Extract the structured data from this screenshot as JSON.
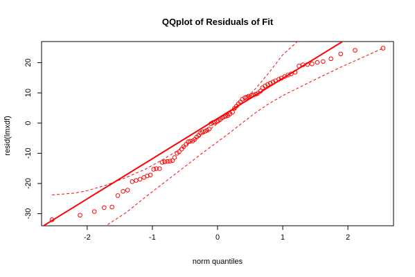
{
  "chart_data": {
    "type": "scatter",
    "title": "QQplot of Residuals of Fit",
    "xlabel": "norm quantiles",
    "ylabel": "resid(lmxdf)",
    "xlim": [
      -2.7,
      2.7
    ],
    "ylim": [
      -34,
      27
    ],
    "x_ticks": [
      -2,
      -1,
      0,
      1,
      2
    ],
    "y_ticks": [
      -30,
      -20,
      -10,
      0,
      10,
      20
    ],
    "grid": false,
    "legend": "none",
    "colors": {
      "points": "#ff0000",
      "line": "#ff0000",
      "axes": "#000000"
    },
    "points": [
      [
        -2.54,
        -32.0
      ],
      [
        -2.11,
        -30.5
      ],
      [
        -1.89,
        -29.3
      ],
      [
        -1.74,
        -28.0
      ],
      [
        -1.62,
        -27.8
      ],
      [
        -1.53,
        -24.0
      ],
      [
        -1.45,
        -22.6
      ],
      [
        -1.38,
        -22.2
      ],
      [
        -1.31,
        -19.4
      ],
      [
        -1.25,
        -19.0
      ],
      [
        -1.19,
        -18.6
      ],
      [
        -1.13,
        -18.0
      ],
      [
        -1.08,
        -17.5
      ],
      [
        -1.03,
        -17.2
      ],
      [
        -0.98,
        -15.3
      ],
      [
        -0.94,
        -15.1
      ],
      [
        -0.89,
        -15.1
      ],
      [
        -0.85,
        -13.0
      ],
      [
        -0.81,
        -12.8
      ],
      [
        -0.77,
        -12.7
      ],
      [
        -0.73,
        -12.6
      ],
      [
        -0.69,
        -12.4
      ],
      [
        -0.66,
        -11.4
      ],
      [
        -0.62,
        -10.0
      ],
      [
        -0.59,
        -9.5
      ],
      [
        -0.55,
        -8.6
      ],
      [
        -0.52,
        -7.8
      ],
      [
        -0.48,
        -7.0
      ],
      [
        -0.45,
        -6.2
      ],
      [
        -0.42,
        -6.0
      ],
      [
        -0.38,
        -5.9
      ],
      [
        -0.35,
        -5.4
      ],
      [
        -0.32,
        -4.6
      ],
      [
        -0.29,
        -4.1
      ],
      [
        -0.26,
        -3.3
      ],
      [
        -0.23,
        -2.9
      ],
      [
        -0.19,
        -2.7
      ],
      [
        -0.16,
        -2.4
      ],
      [
        -0.13,
        -2.0
      ],
      [
        -0.1,
        -0.2
      ],
      [
        -0.07,
        0.2
      ],
      [
        -0.04,
        0.3
      ],
      [
        -0.01,
        0.5
      ],
      [
        0.01,
        0.8
      ],
      [
        0.04,
        1.2
      ],
      [
        0.07,
        1.8
      ],
      [
        0.1,
        2.1
      ],
      [
        0.13,
        2.3
      ],
      [
        0.16,
        2.5
      ],
      [
        0.19,
        3.0
      ],
      [
        0.23,
        3.6
      ],
      [
        0.26,
        4.9
      ],
      [
        0.29,
        5.6
      ],
      [
        0.32,
        6.4
      ],
      [
        0.35,
        7.0
      ],
      [
        0.38,
        7.9
      ],
      [
        0.42,
        8.4
      ],
      [
        0.45,
        8.6
      ],
      [
        0.48,
        8.9
      ],
      [
        0.52,
        9.1
      ],
      [
        0.55,
        9.3
      ],
      [
        0.59,
        9.6
      ],
      [
        0.62,
        9.9
      ],
      [
        0.66,
        10.6
      ],
      [
        0.69,
        11.7
      ],
      [
        0.73,
        12.3
      ],
      [
        0.77,
        12.8
      ],
      [
        0.81,
        13.2
      ],
      [
        0.85,
        13.6
      ],
      [
        0.89,
        14.0
      ],
      [
        0.94,
        14.5
      ],
      [
        0.98,
        14.9
      ],
      [
        1.03,
        15.4
      ],
      [
        1.08,
        15.9
      ],
      [
        1.13,
        16.3
      ],
      [
        1.19,
        16.8
      ],
      [
        1.25,
        18.9
      ],
      [
        1.31,
        19.3
      ],
      [
        1.38,
        19.4
      ],
      [
        1.45,
        19.6
      ],
      [
        1.53,
        20.1
      ],
      [
        1.62,
        20.4
      ],
      [
        1.74,
        21.3
      ],
      [
        1.89,
        22.9
      ],
      [
        2.11,
        24.1
      ],
      [
        2.54,
        24.8
      ]
    ],
    "fit_line": {
      "intercept": 1.5,
      "slope": 13.3
    },
    "upper_envelope": [
      [
        -2.54,
        -23.8
      ],
      [
        -2.2,
        -23.2
      ],
      [
        -2.0,
        -22.4
      ],
      [
        -1.7,
        -20.5
      ],
      [
        -1.4,
        -18.0
      ],
      [
        -1.1,
        -15.2
      ],
      [
        -0.8,
        -11.6
      ],
      [
        -0.5,
        -7.6
      ],
      [
        -0.2,
        -3.4
      ],
      [
        0.0,
        -0.2
      ],
      [
        0.2,
        3.2
      ],
      [
        0.4,
        7.2
      ],
      [
        0.6,
        11.8
      ],
      [
        0.8,
        17.0
      ],
      [
        1.0,
        22.6
      ],
      [
        1.3,
        28.5
      ]
    ],
    "lower_envelope": [
      [
        -1.75,
        -34.5
      ],
      [
        -1.4,
        -29.6
      ],
      [
        -1.1,
        -24.4
      ],
      [
        -0.8,
        -19.4
      ],
      [
        -0.5,
        -14.4
      ],
      [
        -0.2,
        -9.4
      ],
      [
        0.0,
        -6.2
      ],
      [
        0.2,
        -3.0
      ],
      [
        0.4,
        0.4
      ],
      [
        0.6,
        3.7
      ],
      [
        0.8,
        6.6
      ],
      [
        1.0,
        9.1
      ],
      [
        1.3,
        12.3
      ],
      [
        1.6,
        15.5
      ],
      [
        1.9,
        18.6
      ],
      [
        2.2,
        21.5
      ],
      [
        2.54,
        24.8
      ]
    ]
  }
}
